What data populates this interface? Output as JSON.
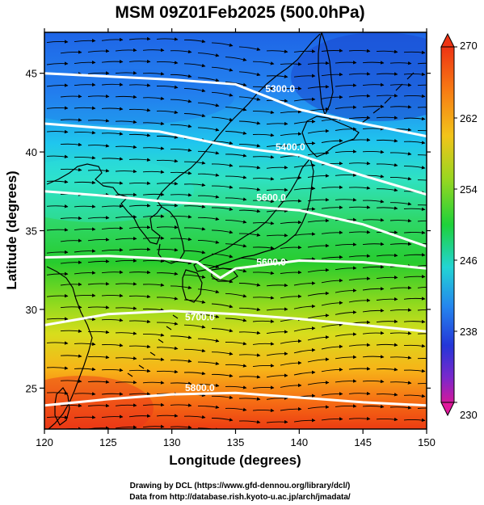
{
  "title": "MSM 09Z01Feb2025 (500.0hPa)",
  "footer": {
    "line1": "Drawing by DCL (https://www.gfd-dennou.org/library/dcl/)",
    "line2": "Data from http://database.rish.kyoto-u.ac.jp/arch/jmadata/"
  },
  "chart_data": {
    "type": "heatmap",
    "xlabel": "Longitude (degrees)",
    "ylabel": "Latitude  (degrees)",
    "xlim": [
      120,
      150
    ],
    "ylim": [
      22.4,
      47.6
    ],
    "x_ticks": [
      120,
      125,
      130,
      135,
      140,
      145,
      150
    ],
    "y_ticks": [
      25,
      30,
      35,
      40,
      45
    ],
    "colorbar": {
      "min": 230,
      "max": 270,
      "ticks": [
        230,
        238,
        246,
        254,
        262,
        270
      ]
    },
    "contours": [
      {
        "label": "5300.0",
        "label_pos": [
          138.5,
          43.8
        ],
        "points": [
          [
            120,
            45.0
          ],
          [
            125,
            44.8
          ],
          [
            130,
            44.6
          ],
          [
            135,
            44.3
          ],
          [
            140,
            42.7
          ],
          [
            145,
            41.8
          ],
          [
            150,
            41.0
          ]
        ]
      },
      {
        "label": "5400.0",
        "label_pos": [
          139.3,
          40.1
        ],
        "points": [
          [
            120,
            41.8
          ],
          [
            125,
            41.5
          ],
          [
            129,
            41.3
          ],
          [
            135,
            40.3
          ],
          [
            140,
            39.8
          ],
          [
            145,
            38.5
          ],
          [
            150,
            37.3
          ]
        ]
      },
      {
        "label": "5600.0",
        "label_pos": [
          137.8,
          36.9
        ],
        "points": [
          [
            120,
            37.5
          ],
          [
            125,
            37.2
          ],
          [
            130,
            36.8
          ],
          [
            135,
            36.6
          ],
          [
            140,
            36.3
          ],
          [
            145,
            35.4
          ],
          [
            150,
            34.0
          ]
        ]
      },
      {
        "label": "5600.0",
        "label_pos": [
          137.8,
          32.8
        ],
        "points": [
          [
            120,
            33.3
          ],
          [
            125,
            33.4
          ],
          [
            130,
            33.2
          ],
          [
            132,
            33.0
          ],
          [
            133.8,
            32.0
          ],
          [
            135,
            32.6
          ],
          [
            140,
            33.1
          ],
          [
            145,
            33.0
          ],
          [
            150,
            32.6
          ]
        ]
      },
      {
        "label": "5700.0",
        "label_pos": [
          132.2,
          29.3
        ],
        "points": [
          [
            120,
            29.0
          ],
          [
            125,
            29.7
          ],
          [
            130,
            29.9
          ],
          [
            135,
            29.7
          ],
          [
            140,
            29.4
          ],
          [
            145,
            29.0
          ],
          [
            150,
            28.6
          ]
        ]
      },
      {
        "label": "5800.0",
        "label_pos": [
          132.2,
          24.8
        ],
        "points": [
          [
            120,
            23.9
          ],
          [
            125,
            24.3
          ],
          [
            130,
            24.6
          ],
          [
            135,
            24.7
          ],
          [
            140,
            24.4
          ],
          [
            145,
            24.1
          ],
          [
            150,
            23.9
          ]
        ]
      }
    ]
  }
}
